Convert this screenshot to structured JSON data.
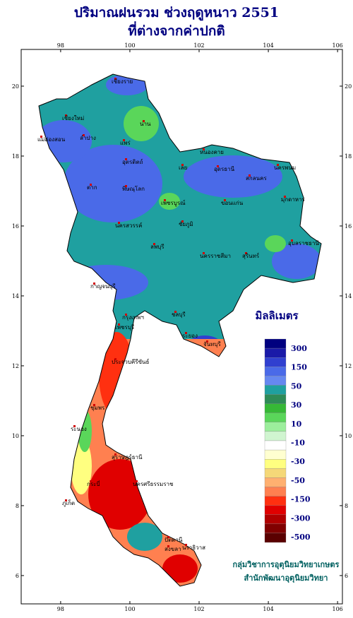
{
  "header": {
    "title_line1": "ปริมาณฝนรวม ช่วงฤดูหนาว 2551",
    "title_line2": "ที่ต่างจากค่าปกติ"
  },
  "map": {
    "lonlim": [
      96.86,
      106.14
    ],
    "latlim": [
      21.05,
      5.19
    ],
    "lonticks": [
      98,
      100,
      102,
      104,
      106
    ],
    "latticks": [
      6,
      8,
      10,
      12,
      14,
      16,
      18,
      20
    ],
    "provinces": [
      "เชียงราย",
      "แม่ฮ่องสอน",
      "เชียงใหม่",
      "น่าน",
      "ลำปาง",
      "แพร่",
      "อุตรดิตถ์",
      "ตาก",
      "พิษณุโลก",
      "เพชรบูรณ์",
      "เลย",
      "อุดรธานี",
      "หนองคาย",
      "นครพนม",
      "สกลนคร",
      "มุกดาหาร",
      "ขอนแก่น",
      "ชัยภูมิ",
      "นครสวรรค์",
      "ลพบุรี",
      "นครราชสีมา",
      "สุรินทร์",
      "อุบลราชธานี",
      "กาญจนบุรี",
      "กรุงเทพฯ",
      "ชลบุรี",
      "ระยอง",
      "จันทบุรี",
      "เพชรบุรี",
      "ประจวบคีรีขันธ์",
      "ชุมพร",
      "ระนอง",
      "สุราษฎร์ธานี",
      "นครศรีธรรมราช",
      "ภูเก็ต",
      "กระบี่",
      "สงขลา",
      "ปัตตานี",
      "นราธิวาส"
    ]
  },
  "legend": {
    "title": "มิลลิเมตร",
    "colors": [
      "#00007f",
      "#1a1aa8",
      "#3040d0",
      "#4a6ae8",
      "#6688f0",
      "#1fa0a0",
      "#2e8b57",
      "#36b836",
      "#5ad65a",
      "#9cee9c",
      "#d0f5d0",
      "#ffffff",
      "#ffffd0",
      "#ffff80",
      "#f5d878",
      "#ffb070",
      "#ff8050",
      "#ff3010",
      "#e00000",
      "#b00000",
      "#800000",
      "#5a0000"
    ],
    "labels": [
      "300",
      "150",
      "50",
      "30",
      "10",
      "-10",
      "-30",
      "-50",
      "-150",
      "-300",
      "-500"
    ]
  },
  "credit": {
    "line1": "กลุ่มวิชาการอุตุนิยมวิทยาเกษตร",
    "line2": "สำนักพัฒนาอุตุนิยมวิทยา"
  }
}
